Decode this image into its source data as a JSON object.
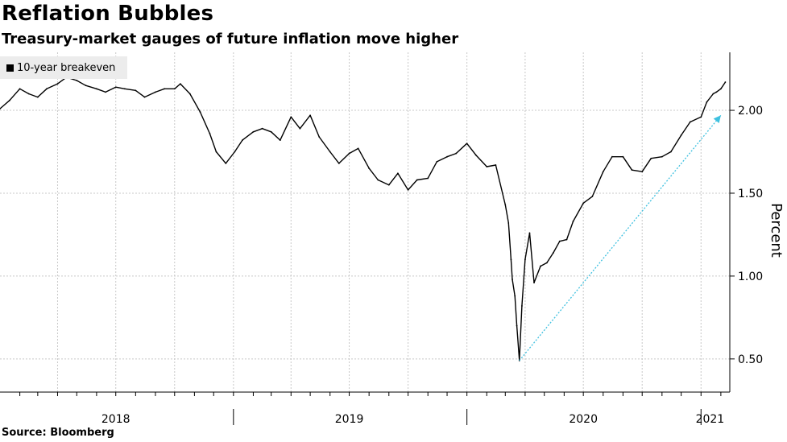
{
  "title": "Reflation Bubbles",
  "subtitle": "Treasury-market gauges of future inflation move higher",
  "source": "Source: Bloomberg",
  "colors": {
    "line": "#000000",
    "arrow": "#3fc1e0",
    "grid": "#c8c8c8",
    "legend_bg": "#ececec"
  },
  "chart_data": {
    "type": "line",
    "title": "Reflation Bubbles",
    "subtitle": "Treasury-market gauges of future inflation move higher",
    "ylabel": "Percent",
    "xlabel": "",
    "y_range": [
      0.3,
      2.35
    ],
    "x_range": [
      "2018-01-01",
      "2021-02-15"
    ],
    "y_ticks": [
      0.5,
      1.0,
      1.5,
      2.0
    ],
    "y_tick_labels": [
      "0.50",
      "1.00",
      "1.50",
      "2.00"
    ],
    "x_tick_labels": [
      "2018",
      "2019",
      "2020",
      "2021"
    ],
    "x_tick_centers": [
      "2018-07-01",
      "2019-07-01",
      "2020-07-01",
      "2021-01-15"
    ],
    "year_boundaries": [
      "2019-01-01",
      "2020-01-01",
      "2021-01-01"
    ],
    "grid": true,
    "legend": {
      "position": "top-left",
      "entries": [
        "10-year breakeven"
      ]
    },
    "series": [
      {
        "name": "10-year breakeven",
        "x": [
          "2018-01-01",
          "2018-01-16",
          "2018-02-01",
          "2018-02-15",
          "2018-03-01",
          "2018-03-15",
          "2018-04-01",
          "2018-04-15",
          "2018-05-01",
          "2018-05-15",
          "2018-06-01",
          "2018-06-15",
          "2018-07-01",
          "2018-07-15",
          "2018-08-01",
          "2018-08-15",
          "2018-09-01",
          "2018-09-15",
          "2018-10-01",
          "2018-10-10",
          "2018-10-25",
          "2018-11-10",
          "2018-11-25",
          "2018-12-05",
          "2018-12-20",
          "2019-01-03",
          "2019-01-15",
          "2019-02-01",
          "2019-02-15",
          "2019-03-01",
          "2019-03-15",
          "2019-04-01",
          "2019-04-15",
          "2019-05-01",
          "2019-05-15",
          "2019-06-01",
          "2019-06-15",
          "2019-07-01",
          "2019-07-15",
          "2019-08-01",
          "2019-08-15",
          "2019-09-01",
          "2019-09-15",
          "2019-10-01",
          "2019-10-15",
          "2019-11-01",
          "2019-11-15",
          "2019-12-01",
          "2019-12-15",
          "2020-01-01",
          "2020-01-15",
          "2020-02-01",
          "2020-02-15",
          "2020-03-01",
          "2020-03-06",
          "2020-03-10",
          "2020-03-12",
          "2020-03-16",
          "2020-03-19",
          "2020-03-23",
          "2020-03-27",
          "2020-04-01",
          "2020-04-08",
          "2020-04-15",
          "2020-04-25",
          "2020-05-05",
          "2020-05-15",
          "2020-05-25",
          "2020-06-05",
          "2020-06-15",
          "2020-07-01",
          "2020-07-15",
          "2020-08-01",
          "2020-08-15",
          "2020-09-01",
          "2020-09-15",
          "2020-10-01",
          "2020-10-15",
          "2020-11-01",
          "2020-11-15",
          "2020-12-01",
          "2020-12-15",
          "2021-01-01",
          "2021-01-10",
          "2021-01-20",
          "2021-01-25",
          "2021-02-01",
          "2021-02-08"
        ],
        "y": [
          2.01,
          2.06,
          2.13,
          2.1,
          2.08,
          2.13,
          2.16,
          2.2,
          2.18,
          2.15,
          2.13,
          2.11,
          2.14,
          2.13,
          2.12,
          2.08,
          2.11,
          2.13,
          2.13,
          2.16,
          2.1,
          1.99,
          1.86,
          1.75,
          1.68,
          1.75,
          1.82,
          1.87,
          1.89,
          1.87,
          1.82,
          1.96,
          1.89,
          1.97,
          1.84,
          1.75,
          1.68,
          1.74,
          1.77,
          1.65,
          1.58,
          1.55,
          1.62,
          1.52,
          1.58,
          1.59,
          1.69,
          1.72,
          1.74,
          1.8,
          1.73,
          1.66,
          1.67,
          1.43,
          1.32,
          1.1,
          0.98,
          0.88,
          0.7,
          0.49,
          0.82,
          1.1,
          1.26,
          0.96,
          1.06,
          1.08,
          1.14,
          1.21,
          1.22,
          1.33,
          1.44,
          1.48,
          1.63,
          1.72,
          1.72,
          1.64,
          1.63,
          1.71,
          1.72,
          1.75,
          1.85,
          1.93,
          1.96,
          2.05,
          2.1,
          2.11,
          2.13,
          2.17
        ]
      }
    ],
    "annotations": [
      {
        "type": "arrow",
        "style": "dotted",
        "from": {
          "x": "2020-03-23",
          "y": 0.49
        },
        "to": {
          "x": "2021-02-01",
          "y": 1.97
        }
      }
    ]
  }
}
